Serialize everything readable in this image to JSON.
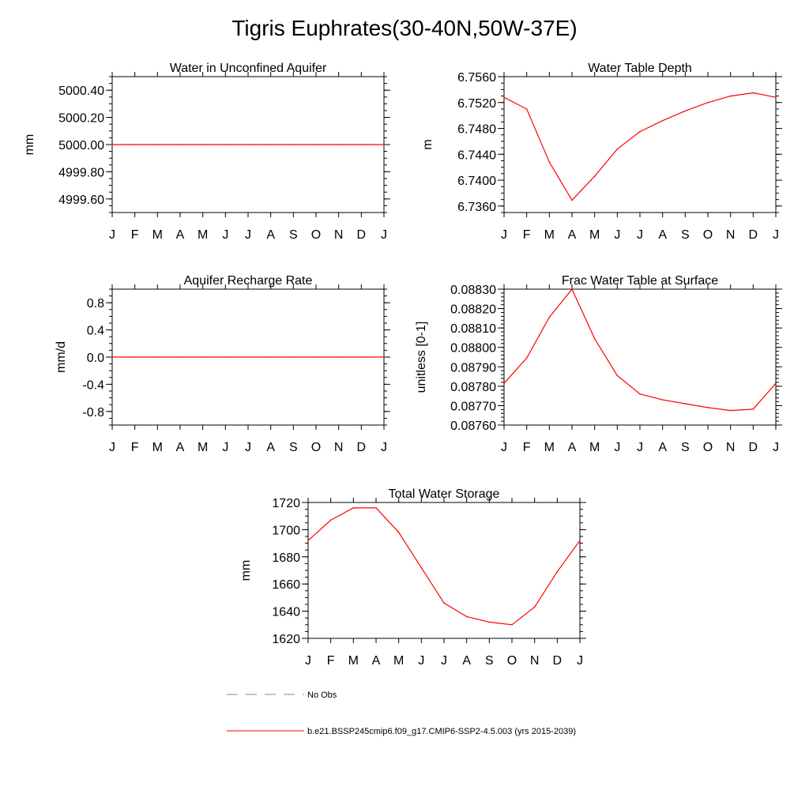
{
  "page_title": "Tigris Euphrates(30-40N,50W-37E)",
  "colors": {
    "model_line": "#ff0000",
    "obs_line": "#888888",
    "axis": "#000000"
  },
  "chart_data": [
    {
      "type": "line",
      "id": "unconfined",
      "title": "Water in Unconfined Aquifer",
      "ylabel": "mm",
      "categories": [
        "J",
        "F",
        "M",
        "A",
        "M",
        "J",
        "J",
        "A",
        "S",
        "O",
        "N",
        "D",
        "J"
      ],
      "ylim": [
        4999.5,
        5000.5
      ],
      "yticks": [
        4999.6,
        4999.8,
        5000.0,
        5000.2,
        5000.4
      ],
      "ytick_labels": [
        "4999.60",
        "4999.80",
        "5000.00",
        "5000.20",
        "5000.40"
      ],
      "yminor_step": 0.05,
      "values": [
        5000,
        5000,
        5000,
        5000,
        5000,
        5000,
        5000,
        5000,
        5000,
        5000,
        5000,
        5000,
        5000
      ]
    },
    {
      "type": "line",
      "id": "wtd",
      "title": "Water Table Depth",
      "ylabel": "m",
      "categories": [
        "J",
        "F",
        "M",
        "A",
        "M",
        "J",
        "J",
        "A",
        "S",
        "O",
        "N",
        "D",
        "J"
      ],
      "ylim": [
        6.735,
        6.756
      ],
      "yticks": [
        6.736,
        6.74,
        6.744,
        6.748,
        6.752,
        6.756
      ],
      "ytick_labels": [
        "6.7360",
        "6.7400",
        "6.7440",
        "6.7480",
        "6.7520",
        "6.7560"
      ],
      "yminor_step": 0.001,
      "values": [
        6.7528,
        6.751,
        6.7428,
        6.7369,
        6.7406,
        6.7448,
        6.7475,
        6.7492,
        6.7507,
        6.752,
        6.753,
        6.7535,
        6.7528
      ]
    },
    {
      "type": "line",
      "id": "recharge",
      "title": "Aquifer Recharge Rate",
      "ylabel": "mm/d",
      "categories": [
        "J",
        "F",
        "M",
        "A",
        "M",
        "J",
        "J",
        "A",
        "S",
        "O",
        "N",
        "D",
        "J"
      ],
      "ylim": [
        -1.0,
        1.0
      ],
      "yticks": [
        -0.8,
        -0.4,
        0.0,
        0.4,
        0.8
      ],
      "ytick_labels": [
        "-0.8",
        "-0.4",
        "0.0",
        "0.4",
        "0.8"
      ],
      "yminor_step": 0.1,
      "values": [
        0,
        0,
        0,
        0,
        0,
        0,
        0,
        0,
        0,
        0,
        0,
        0,
        0
      ]
    },
    {
      "type": "line",
      "id": "frac",
      "title": "Frac Water Table at Surface",
      "ylabel": "unitless [0-1]",
      "categories": [
        "J",
        "F",
        "M",
        "A",
        "M",
        "J",
        "J",
        "A",
        "S",
        "O",
        "N",
        "D",
        "J"
      ],
      "ylim": [
        0.0876,
        0.0883
      ],
      "yticks": [
        0.0876,
        0.0877,
        0.0878,
        0.0879,
        0.088,
        0.0881,
        0.0882,
        0.0883
      ],
      "ytick_labels": [
        "0.08760",
        "0.08770",
        "0.08780",
        "0.08790",
        "0.08800",
        "0.08810",
        "0.08820",
        "0.08830"
      ],
      "yminor_step": 2e-05,
      "values": [
        0.087815,
        0.087945,
        0.088155,
        0.0883,
        0.088045,
        0.087855,
        0.08776,
        0.08773,
        0.08771,
        0.08769,
        0.087675,
        0.087682,
        0.087815
      ]
    },
    {
      "type": "line",
      "id": "tws",
      "title": "Total Water Storage",
      "ylabel": "mm",
      "categories": [
        "J",
        "F",
        "M",
        "A",
        "M",
        "J",
        "J",
        "A",
        "S",
        "O",
        "N",
        "D",
        "J"
      ],
      "ylim": [
        1620,
        1720
      ],
      "yticks": [
        1620,
        1640,
        1660,
        1680,
        1700,
        1720
      ],
      "ytick_labels": [
        "1620",
        "1640",
        "1660",
        "1680",
        "1700",
        "1720"
      ],
      "yminor_step": 5,
      "values": [
        1692,
        1707,
        1716,
        1716,
        1698,
        1672,
        1646,
        1636,
        1632,
        1630,
        1643,
        1669,
        1692
      ]
    }
  ],
  "legend": [
    {
      "label": "No Obs",
      "style": "dashed"
    },
    {
      "label": "b.e21.BSSP245cmip6.f09_g17.CMIP6-SSP2-4.5.003 (yrs 2015-2039)",
      "style": "solid"
    }
  ]
}
